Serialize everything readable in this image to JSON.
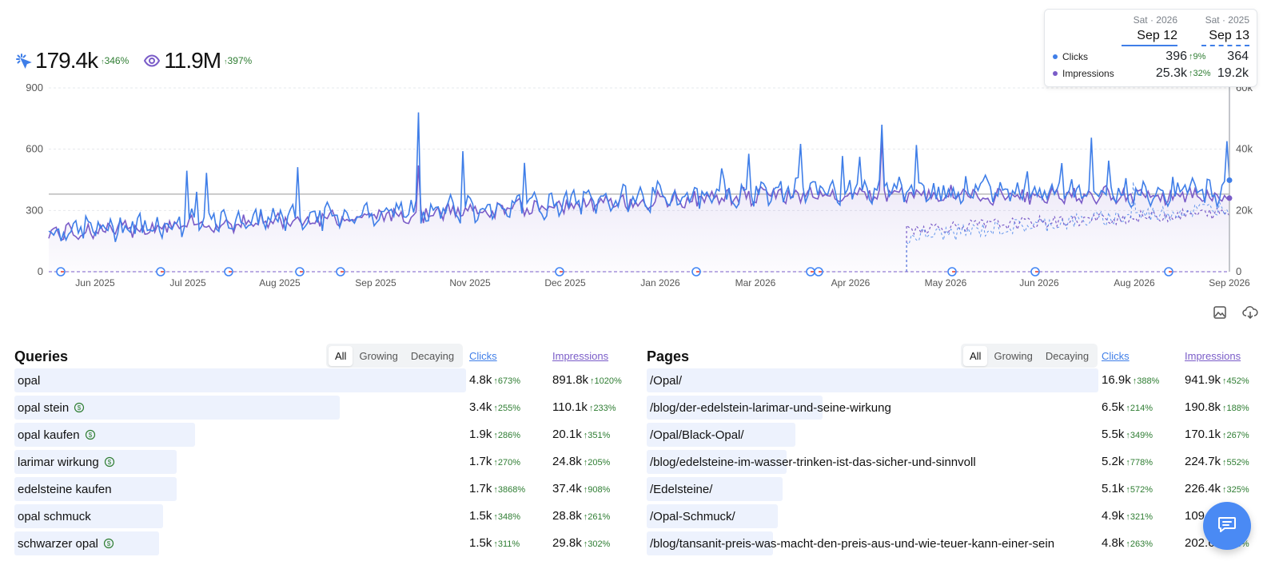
{
  "colors": {
    "clicks": "#3f7ee8",
    "impressions": "#7a5cc8",
    "positive": "#2e7d32",
    "bar": "#edf2fd"
  },
  "kpis": {
    "clicks": {
      "icon": "click-icon",
      "value": "179.4k",
      "delta": "346%"
    },
    "impressions": {
      "icon": "eye-icon",
      "value": "11.9M",
      "delta": "397%"
    }
  },
  "tooltip": {
    "col1": {
      "day": "Sat · 2026",
      "date": "Sep 12"
    },
    "col2": {
      "day": "Sat · 2025",
      "date": "Sep 13"
    },
    "rows": [
      {
        "label": "Clicks",
        "v1": "396",
        "d1": "9%",
        "v2": "364"
      },
      {
        "label": "Impressions",
        "v1": "25.3k",
        "d1": "32%",
        "v2": "19.2k"
      }
    ]
  },
  "chart_data": {
    "type": "line",
    "y_left_ticks": [
      "900",
      "600",
      "300",
      "0"
    ],
    "y_right_ticks": [
      "60k",
      "40k",
      "20k",
      "0"
    ],
    "y_left_range": [
      0,
      900
    ],
    "y_right_range": [
      0,
      60000
    ],
    "x_ticks": [
      "Jun 2025",
      "Jul 2025",
      "Aug 2025",
      "Sep 2025",
      "Nov 2025",
      "Dec 2025",
      "Jan 2026",
      "Mar 2026",
      "Apr 2026",
      "May 2026",
      "Jun 2026",
      "Aug 2026",
      "Sep 2026"
    ],
    "series": [
      {
        "name": "Clicks",
        "axis": "left",
        "color": "#3f7ee8"
      },
      {
        "name": "Impressions",
        "axis": "right",
        "color": "#7a5cc8"
      }
    ],
    "reference_line_value": 380,
    "google_update_markers": 17,
    "grid": true
  },
  "toolbar": {
    "image_icon": "image-icon",
    "download_icon": "cloud-download-icon"
  },
  "queries": {
    "title": "Queries",
    "filters": [
      "All",
      "Growing",
      "Decaying"
    ],
    "active_filter": "All",
    "col_clicks": "Clicks",
    "col_impressions": "Impressions",
    "rows": [
      {
        "label": "opal",
        "badge": false,
        "share": 1.0,
        "clicks": "4.8k",
        "clicks_d": "673%",
        "impr": "891.8k",
        "impr_d": "1020%"
      },
      {
        "label": "opal stein",
        "badge": true,
        "share": 0.72,
        "clicks": "3.4k",
        "clicks_d": "255%",
        "impr": "110.1k",
        "impr_d": "233%"
      },
      {
        "label": "opal kaufen",
        "badge": true,
        "share": 0.4,
        "clicks": "1.9k",
        "clicks_d": "286%",
        "impr": "20.1k",
        "impr_d": "351%"
      },
      {
        "label": "larimar wirkung",
        "badge": true,
        "share": 0.36,
        "clicks": "1.7k",
        "clicks_d": "270%",
        "impr": "24.8k",
        "impr_d": "205%"
      },
      {
        "label": "edelsteine kaufen",
        "badge": false,
        "share": 0.36,
        "clicks": "1.7k",
        "clicks_d": "3868%",
        "impr": "37.4k",
        "impr_d": "908%"
      },
      {
        "label": "opal schmuck",
        "badge": false,
        "share": 0.33,
        "clicks": "1.5k",
        "clicks_d": "348%",
        "impr": "28.8k",
        "impr_d": "261%"
      },
      {
        "label": "schwarzer opal",
        "badge": true,
        "share": 0.32,
        "clicks": "1.5k",
        "clicks_d": "311%",
        "impr": "29.8k",
        "impr_d": "302%"
      }
    ]
  },
  "pages": {
    "title": "Pages",
    "filters": [
      "All",
      "Growing",
      "Decaying"
    ],
    "active_filter": "All",
    "col_clicks": "Clicks",
    "col_impressions": "Impressions",
    "rows": [
      {
        "label": "/Opal/",
        "share": 1.0,
        "clicks": "16.9k",
        "clicks_d": "388%",
        "impr": "941.9k",
        "impr_d": "452%"
      },
      {
        "label": "/blog/der-edelstein-larimar-und-seine-wirkung",
        "share": 0.39,
        "clicks": "6.5k",
        "clicks_d": "214%",
        "impr": "190.8k",
        "impr_d": "188%"
      },
      {
        "label": "/Opal/Black-Opal/",
        "share": 0.33,
        "clicks": "5.5k",
        "clicks_d": "349%",
        "impr": "170.1k",
        "impr_d": "267%"
      },
      {
        "label": "/blog/edelsteine-im-wasser-trinken-ist-das-sicher-und-sinnvoll",
        "share": 0.31,
        "clicks": "5.2k",
        "clicks_d": "778%",
        "impr": "224.7k",
        "impr_d": "552%"
      },
      {
        "label": "/Edelsteine/",
        "share": 0.3,
        "clicks": "5.1k",
        "clicks_d": "572%",
        "impr": "226.4k",
        "impr_d": "325%"
      },
      {
        "label": "/Opal-Schmuck/",
        "share": 0.29,
        "clicks": "4.9k",
        "clicks_d": "321%",
        "impr": "109",
        "impr_d": ""
      },
      {
        "label": "/blog/tansanit-preis-was-macht-den-preis-aus-und-wie-teuer-kann-einer-sein",
        "share": 0.28,
        "clicks": "4.8k",
        "clicks_d": "263%",
        "impr": "202.6k",
        "impr_d": "456%"
      }
    ]
  },
  "chat": {
    "icon": "chat-icon"
  }
}
